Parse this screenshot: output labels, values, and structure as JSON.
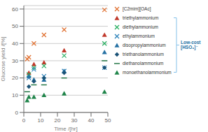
{
  "chart_data": {
    "type": "scatter",
    "title": "",
    "xlabel": "Time /[hr]",
    "ylabel": "Glucose yield /[%]",
    "xlim": [
      0,
      50
    ],
    "ylim": [
      0,
      62
    ],
    "xticks": [
      0,
      10,
      20,
      30,
      40,
      50
    ],
    "yticks": [
      0,
      10,
      20,
      30,
      40,
      50,
      60
    ],
    "grid": "y",
    "legend": "right",
    "series": [
      {
        "name": "[C2mim][OAc]",
        "color": "#e07030",
        "marker": "x",
        "x": [
          2,
          3,
          6,
          12,
          24,
          48
        ],
        "values": [
          31,
          32,
          40,
          45,
          48,
          59.5
        ]
      },
      {
        "name": "triethylammonium",
        "color": "#c0392b",
        "marker": "triangle",
        "x": [
          3,
          6,
          12,
          24,
          48
        ],
        "values": [
          23,
          28,
          29,
          36,
          45
        ]
      },
      {
        "name": "diethylammonium",
        "color": "#27ae60",
        "marker": "x",
        "x": [
          3,
          6,
          12,
          24,
          48
        ],
        "values": [
          22,
          26,
          27,
          33,
          40
        ]
      },
      {
        "name": "ethylammonium",
        "color": "#2980b9",
        "marker": "x",
        "x": [
          3,
          6,
          12,
          24,
          48
        ],
        "values": [
          20,
          25,
          21,
          24,
          26
        ]
      },
      {
        "name": "disopropylammonium",
        "color": "#2471a3",
        "marker": "triangle",
        "x": [
          3,
          6,
          12,
          24,
          48
        ],
        "values": [
          21,
          19,
          19,
          24,
          35
        ]
      },
      {
        "name": "triethanolammonium",
        "color": "#1a5276",
        "marker": "diamond",
        "x": [
          3,
          6,
          12,
          24,
          48
        ],
        "values": [
          15,
          18,
          20,
          23,
          26
        ]
      },
      {
        "name": "diethanolammonium",
        "color": "#196f3d",
        "marker": "hline",
        "x": [
          2,
          6,
          12,
          24,
          48
        ],
        "values": [
          12,
          16,
          16,
          20,
          30
        ]
      },
      {
        "name": "monoethanolammonium",
        "color": "#1e8449",
        "marker": "triangle",
        "x": [
          2,
          3,
          6,
          12,
          24,
          48
        ],
        "values": [
          7,
          9,
          9,
          10,
          11,
          12
        ]
      }
    ],
    "annotations": [
      {
        "text": "Low-cost\n[HSO₄]⁻",
        "color": "#2471a3",
        "bracket_color": "#85c1e9"
      }
    ]
  }
}
